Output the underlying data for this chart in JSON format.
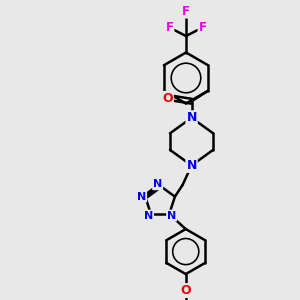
{
  "background_color": "#e8e8e8",
  "bond_color": "#000000",
  "bond_width": 1.8,
  "atom_colors": {
    "N": "#0000ee",
    "O": "#ee0000",
    "F": "#ee00ee",
    "C": "#000000"
  },
  "figsize": [
    3.0,
    3.0
  ],
  "dpi": 100,
  "xlim": [
    0,
    10
  ],
  "ylim": [
    0,
    10
  ]
}
